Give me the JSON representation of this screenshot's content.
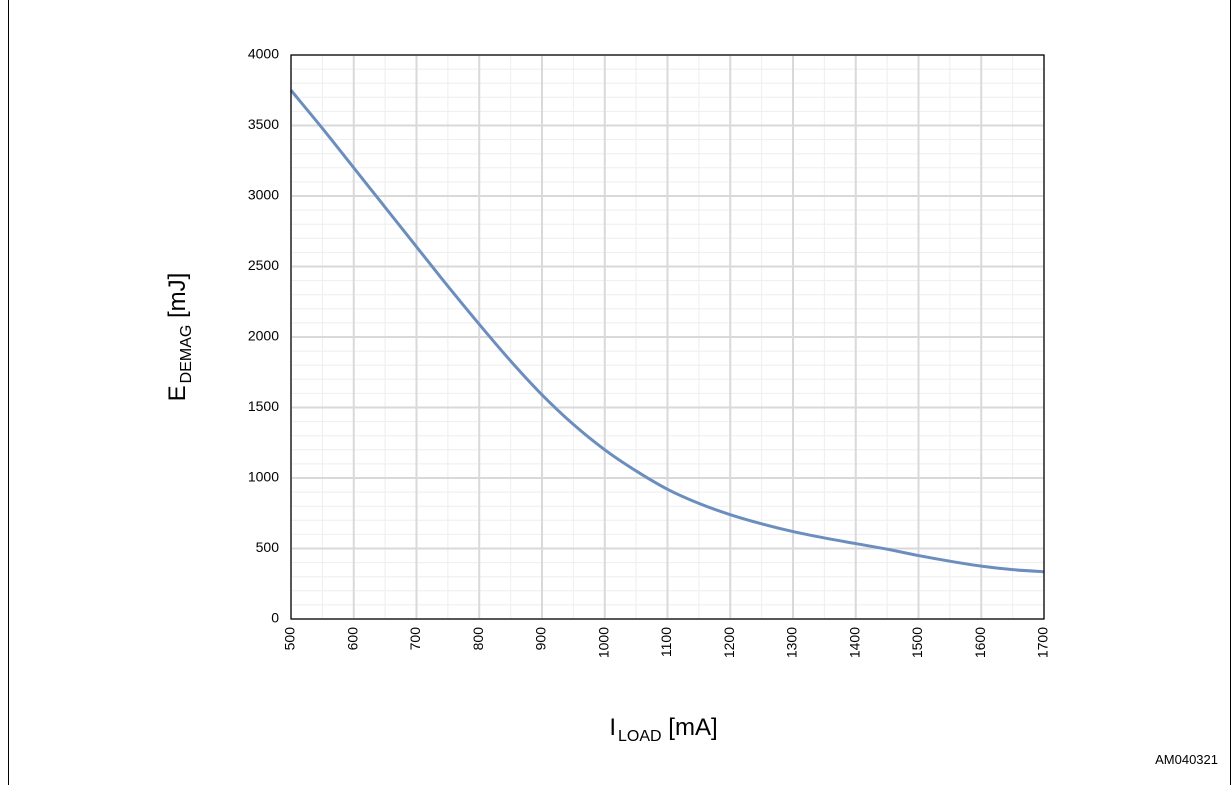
{
  "figure_code": "AM040321",
  "colors": {
    "line": "#6c8ebf",
    "grid_major": "#d9d9d9",
    "grid_minor": "#eeeeee",
    "axis": "#000000"
  },
  "chart_data": {
    "type": "line",
    "title": "",
    "xlabel": {
      "main": "I",
      "sub": "LOAD",
      "unit": " [mA]"
    },
    "ylabel": {
      "main": "E",
      "sub": "DEMAG",
      "unit": " [mJ]"
    },
    "xlim": [
      500,
      1700
    ],
    "ylim": [
      0,
      4000
    ],
    "x_ticks": [
      500,
      600,
      700,
      800,
      900,
      1000,
      1100,
      1200,
      1300,
      1400,
      1500,
      1600,
      1700
    ],
    "y_ticks": [
      0,
      500,
      1000,
      1500,
      2000,
      2500,
      3000,
      3500,
      4000
    ],
    "grid": true,
    "legend": "none",
    "series": [
      {
        "x": [
          500,
          550,
          600,
          650,
          700,
          750,
          800,
          850,
          900,
          950,
          1000,
          1050,
          1100,
          1150,
          1200,
          1250,
          1300,
          1350,
          1400,
          1450,
          1500,
          1550,
          1600,
          1650,
          1700
        ],
        "y": [
          3750,
          3480,
          3200,
          2920,
          2640,
          2360,
          2090,
          1830,
          1590,
          1380,
          1200,
          1050,
          920,
          820,
          740,
          675,
          620,
          575,
          535,
          495,
          450,
          410,
          375,
          350,
          335
        ]
      }
    ]
  }
}
